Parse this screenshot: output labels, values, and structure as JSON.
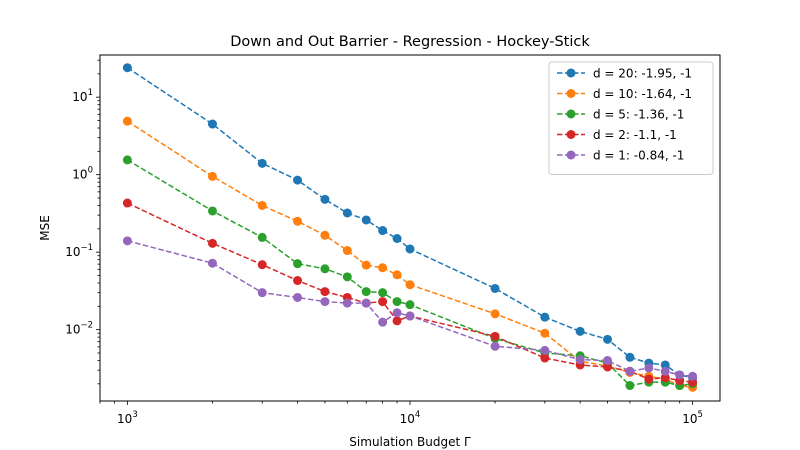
{
  "chart_data": {
    "type": "line",
    "title": "Down and Out Barrier - Regression - Hockey-Stick",
    "xlabel": "Simulation Budget Γ",
    "ylabel": "MSE",
    "xscale": "log",
    "yscale": "log",
    "xlim": [
      800,
      125000
    ],
    "ylim": [
      0.0012,
      35
    ],
    "x_major_ticks": [
      {
        "value": 1000,
        "base": "10",
        "exp": "3"
      },
      {
        "value": 10000,
        "base": "10",
        "exp": "4"
      },
      {
        "value": 100000,
        "base": "10",
        "exp": "5"
      }
    ],
    "y_major_ticks": [
      {
        "value": 10,
        "base": "10",
        "exp": "1"
      },
      {
        "value": 1,
        "base": "10",
        "exp": "0"
      },
      {
        "value": 0.1,
        "base": "10",
        "exp": "−1"
      },
      {
        "value": 0.01,
        "base": "10",
        "exp": "−2"
      }
    ],
    "grid": false,
    "legend_position": "top-right",
    "line_style": "dashed",
    "marker": "circle",
    "x": [
      1000,
      2000,
      3000,
      4000,
      5000,
      6000,
      7000,
      8000,
      9000,
      10000,
      20000,
      30000,
      40000,
      50000,
      60000,
      70000,
      80000,
      90000,
      100000
    ],
    "series": [
      {
        "name": "d = 20: -1.95, -1",
        "color": "#1f77b4",
        "values": [
          24,
          4.5,
          1.4,
          0.85,
          0.48,
          0.32,
          0.26,
          0.19,
          0.15,
          0.11,
          0.034,
          0.0145,
          0.0095,
          0.0075,
          0.0044,
          0.0037,
          0.0035,
          0.0026,
          0.0024
        ]
      },
      {
        "name": "d = 10: -1.64, -1",
        "color": "#ff7f0e",
        "values": [
          4.9,
          0.95,
          0.4,
          0.25,
          0.165,
          0.105,
          0.068,
          0.063,
          0.051,
          0.038,
          0.016,
          0.009,
          0.0039,
          0.0034,
          0.0028,
          0.0025,
          0.0023,
          0.0019,
          0.0018
        ]
      },
      {
        "name": "d = 5: -1.36, -1",
        "color": "#2ca02c",
        "values": [
          1.55,
          0.34,
          0.155,
          0.071,
          0.061,
          0.048,
          0.031,
          0.03,
          0.023,
          0.021,
          0.0077,
          0.005,
          0.0046,
          0.0037,
          0.0019,
          0.0021,
          0.0021,
          0.0019,
          0.002
        ]
      },
      {
        "name": "d = 2: -1.1, -1",
        "color": "#d62728",
        "values": [
          0.43,
          0.13,
          0.069,
          0.043,
          0.031,
          0.026,
          0.022,
          0.023,
          0.013,
          0.015,
          0.0082,
          0.0043,
          0.0035,
          0.0033,
          0.0029,
          0.0023,
          0.0024,
          0.0022,
          0.0021
        ]
      },
      {
        "name": "d = 1: -0.84, -1",
        "color": "#9467bd",
        "values": [
          0.14,
          0.072,
          0.03,
          0.026,
          0.023,
          0.022,
          0.022,
          0.0125,
          0.0165,
          0.015,
          0.0061,
          0.0054,
          0.0041,
          0.004,
          0.0029,
          0.0032,
          0.0029,
          0.0026,
          0.0025
        ]
      }
    ]
  }
}
